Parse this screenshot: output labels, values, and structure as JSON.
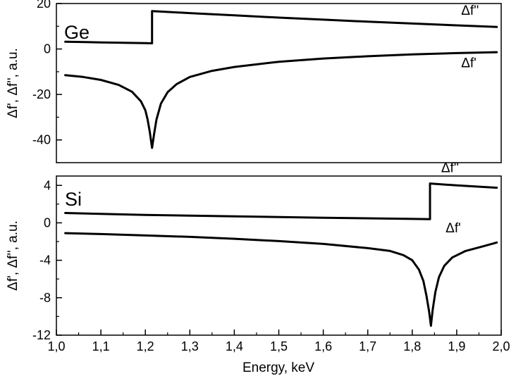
{
  "chart_data": [
    {
      "type": "line",
      "panel_label": "Ge",
      "ylabel": "Δf', Δf'', a.u.",
      "xlim": [
        1.0,
        2.0
      ],
      "ylim": [
        -50,
        20
      ],
      "y_ticks": [
        20,
        0,
        -20,
        -40
      ],
      "y_tick_labels": [
        "20",
        "0",
        "-20",
        "-40"
      ],
      "grid": false,
      "series": [
        {
          "name": "Δf''",
          "points": [
            [
              1.02,
              3.2
            ],
            [
              1.1,
              2.9
            ],
            [
              1.2,
              2.6
            ],
            [
              1.215,
              2.5
            ],
            [
              1.215,
              16.7
            ],
            [
              1.3,
              15.8
            ],
            [
              1.4,
              14.8
            ],
            [
              1.5,
              13.8
            ],
            [
              1.6,
              12.9
            ],
            [
              1.7,
              12.0
            ],
            [
              1.8,
              11.2
            ],
            [
              1.9,
              10.4
            ],
            [
              1.99,
              9.7
            ]
          ]
        },
        {
          "name": "Δf'",
          "points": [
            [
              1.02,
              -11.5
            ],
            [
              1.06,
              -12.3
            ],
            [
              1.1,
              -13.6
            ],
            [
              1.14,
              -15.8
            ],
            [
              1.17,
              -18.8
            ],
            [
              1.19,
              -23.0
            ],
            [
              1.2,
              -27.0
            ],
            [
              1.205,
              -31.0
            ],
            [
              1.21,
              -36.5
            ],
            [
              1.215,
              -43.5
            ],
            [
              1.22,
              -37.0
            ],
            [
              1.225,
              -31.0
            ],
            [
              1.235,
              -24.0
            ],
            [
              1.25,
              -19.0
            ],
            [
              1.27,
              -15.5
            ],
            [
              1.3,
              -12.3
            ],
            [
              1.35,
              -9.6
            ],
            [
              1.4,
              -7.9
            ],
            [
              1.5,
              -5.6
            ],
            [
              1.6,
              -4.2
            ],
            [
              1.7,
              -3.2
            ],
            [
              1.8,
              -2.4
            ],
            [
              1.9,
              -1.8
            ],
            [
              1.99,
              -1.4
            ]
          ]
        }
      ],
      "annotations": [
        {
          "text": "Δf''",
          "x": 1.91,
          "y": 15.0
        },
        {
          "text": "Δf'",
          "x": 1.91,
          "y": -8.0
        }
      ]
    },
    {
      "type": "line",
      "panel_label": "Si",
      "xlabel": "Energy, keV",
      "ylabel": "Δf', Δf'', a.u.",
      "xlim": [
        1.0,
        2.0
      ],
      "ylim": [
        -12,
        5
      ],
      "x_ticks": [
        1.0,
        1.1,
        1.2,
        1.3,
        1.4,
        1.5,
        1.6,
        1.7,
        1.8,
        1.9,
        2.0
      ],
      "x_tick_labels": [
        "1,0",
        "1,1",
        "1,2",
        "1,3",
        "1,4",
        "1,5",
        "1,6",
        "1,7",
        "1,8",
        "1,9",
        "2,0"
      ],
      "y_ticks": [
        4,
        0,
        -4,
        -8,
        -12
      ],
      "y_tick_labels": [
        "4",
        "0",
        "-4",
        "-8",
        "-12"
      ],
      "grid": false,
      "series": [
        {
          "name": "Δf''",
          "points": [
            [
              1.02,
              1.05
            ],
            [
              1.2,
              0.85
            ],
            [
              1.4,
              0.7
            ],
            [
              1.6,
              0.55
            ],
            [
              1.8,
              0.42
            ],
            [
              1.84,
              0.4
            ],
            [
              1.84,
              4.2
            ],
            [
              1.9,
              4.0
            ],
            [
              1.99,
              3.75
            ]
          ]
        },
        {
          "name": "Δf'",
          "points": [
            [
              1.02,
              -1.1
            ],
            [
              1.1,
              -1.2
            ],
            [
              1.2,
              -1.35
            ],
            [
              1.3,
              -1.5
            ],
            [
              1.4,
              -1.7
            ],
            [
              1.5,
              -1.95
            ],
            [
              1.6,
              -2.25
            ],
            [
              1.7,
              -2.7
            ],
            [
              1.75,
              -3.0
            ],
            [
              1.78,
              -3.45
            ],
            [
              1.8,
              -4.0
            ],
            [
              1.815,
              -5.0
            ],
            [
              1.825,
              -6.2
            ],
            [
              1.832,
              -7.8
            ],
            [
              1.838,
              -9.5
            ],
            [
              1.842,
              -11.0
            ],
            [
              1.846,
              -9.3
            ],
            [
              1.852,
              -7.4
            ],
            [
              1.86,
              -5.8
            ],
            [
              1.872,
              -4.6
            ],
            [
              1.89,
              -3.7
            ],
            [
              1.92,
              -3.0
            ],
            [
              1.96,
              -2.5
            ],
            [
              1.99,
              -2.1
            ]
          ]
        }
      ],
      "annotations": [
        {
          "text": "Δf''",
          "x": 1.865,
          "y": 5.4
        },
        {
          "text": "Δf'",
          "x": 1.875,
          "y": -1.0
        }
      ]
    }
  ]
}
